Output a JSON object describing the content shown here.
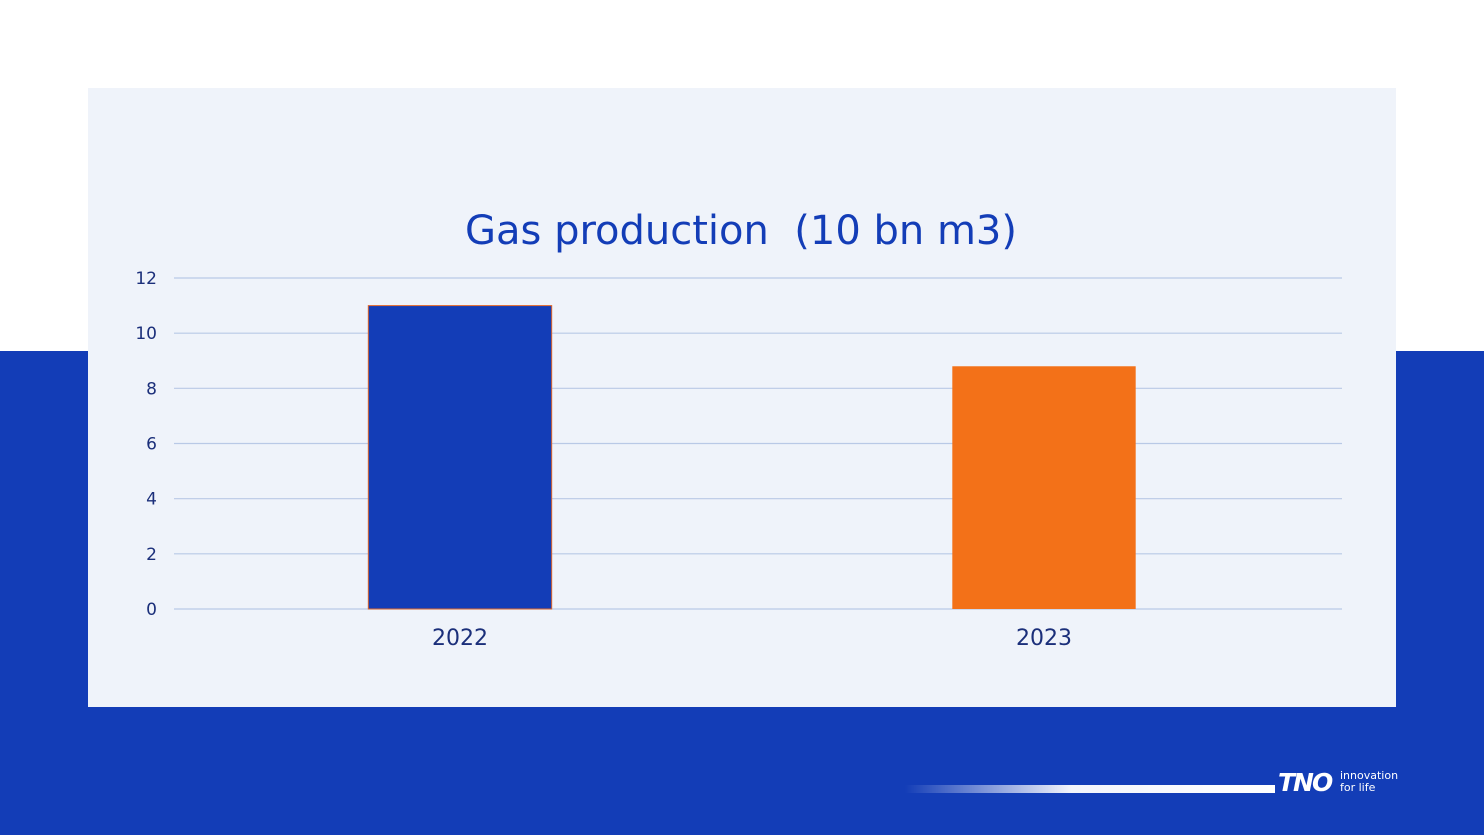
{
  "slide": {
    "background_color": "#ffffff",
    "band_color": "#133db7",
    "panel_color": "#eff3fa"
  },
  "chart_data": {
    "type": "bar",
    "title": "Gas production  (10 bn m3)",
    "categories": [
      "2022",
      "2023"
    ],
    "values": [
      11,
      8.8
    ],
    "bar_colors": [
      "#133db7",
      "#f37118"
    ],
    "ylim": [
      0,
      12
    ],
    "yticks": [
      0,
      2,
      4,
      6,
      8,
      10,
      12
    ],
    "grid": true,
    "legend": "none"
  },
  "footer": {
    "logo": "TNO",
    "tagline_line1": "innovation",
    "tagline_line2": "for life"
  }
}
